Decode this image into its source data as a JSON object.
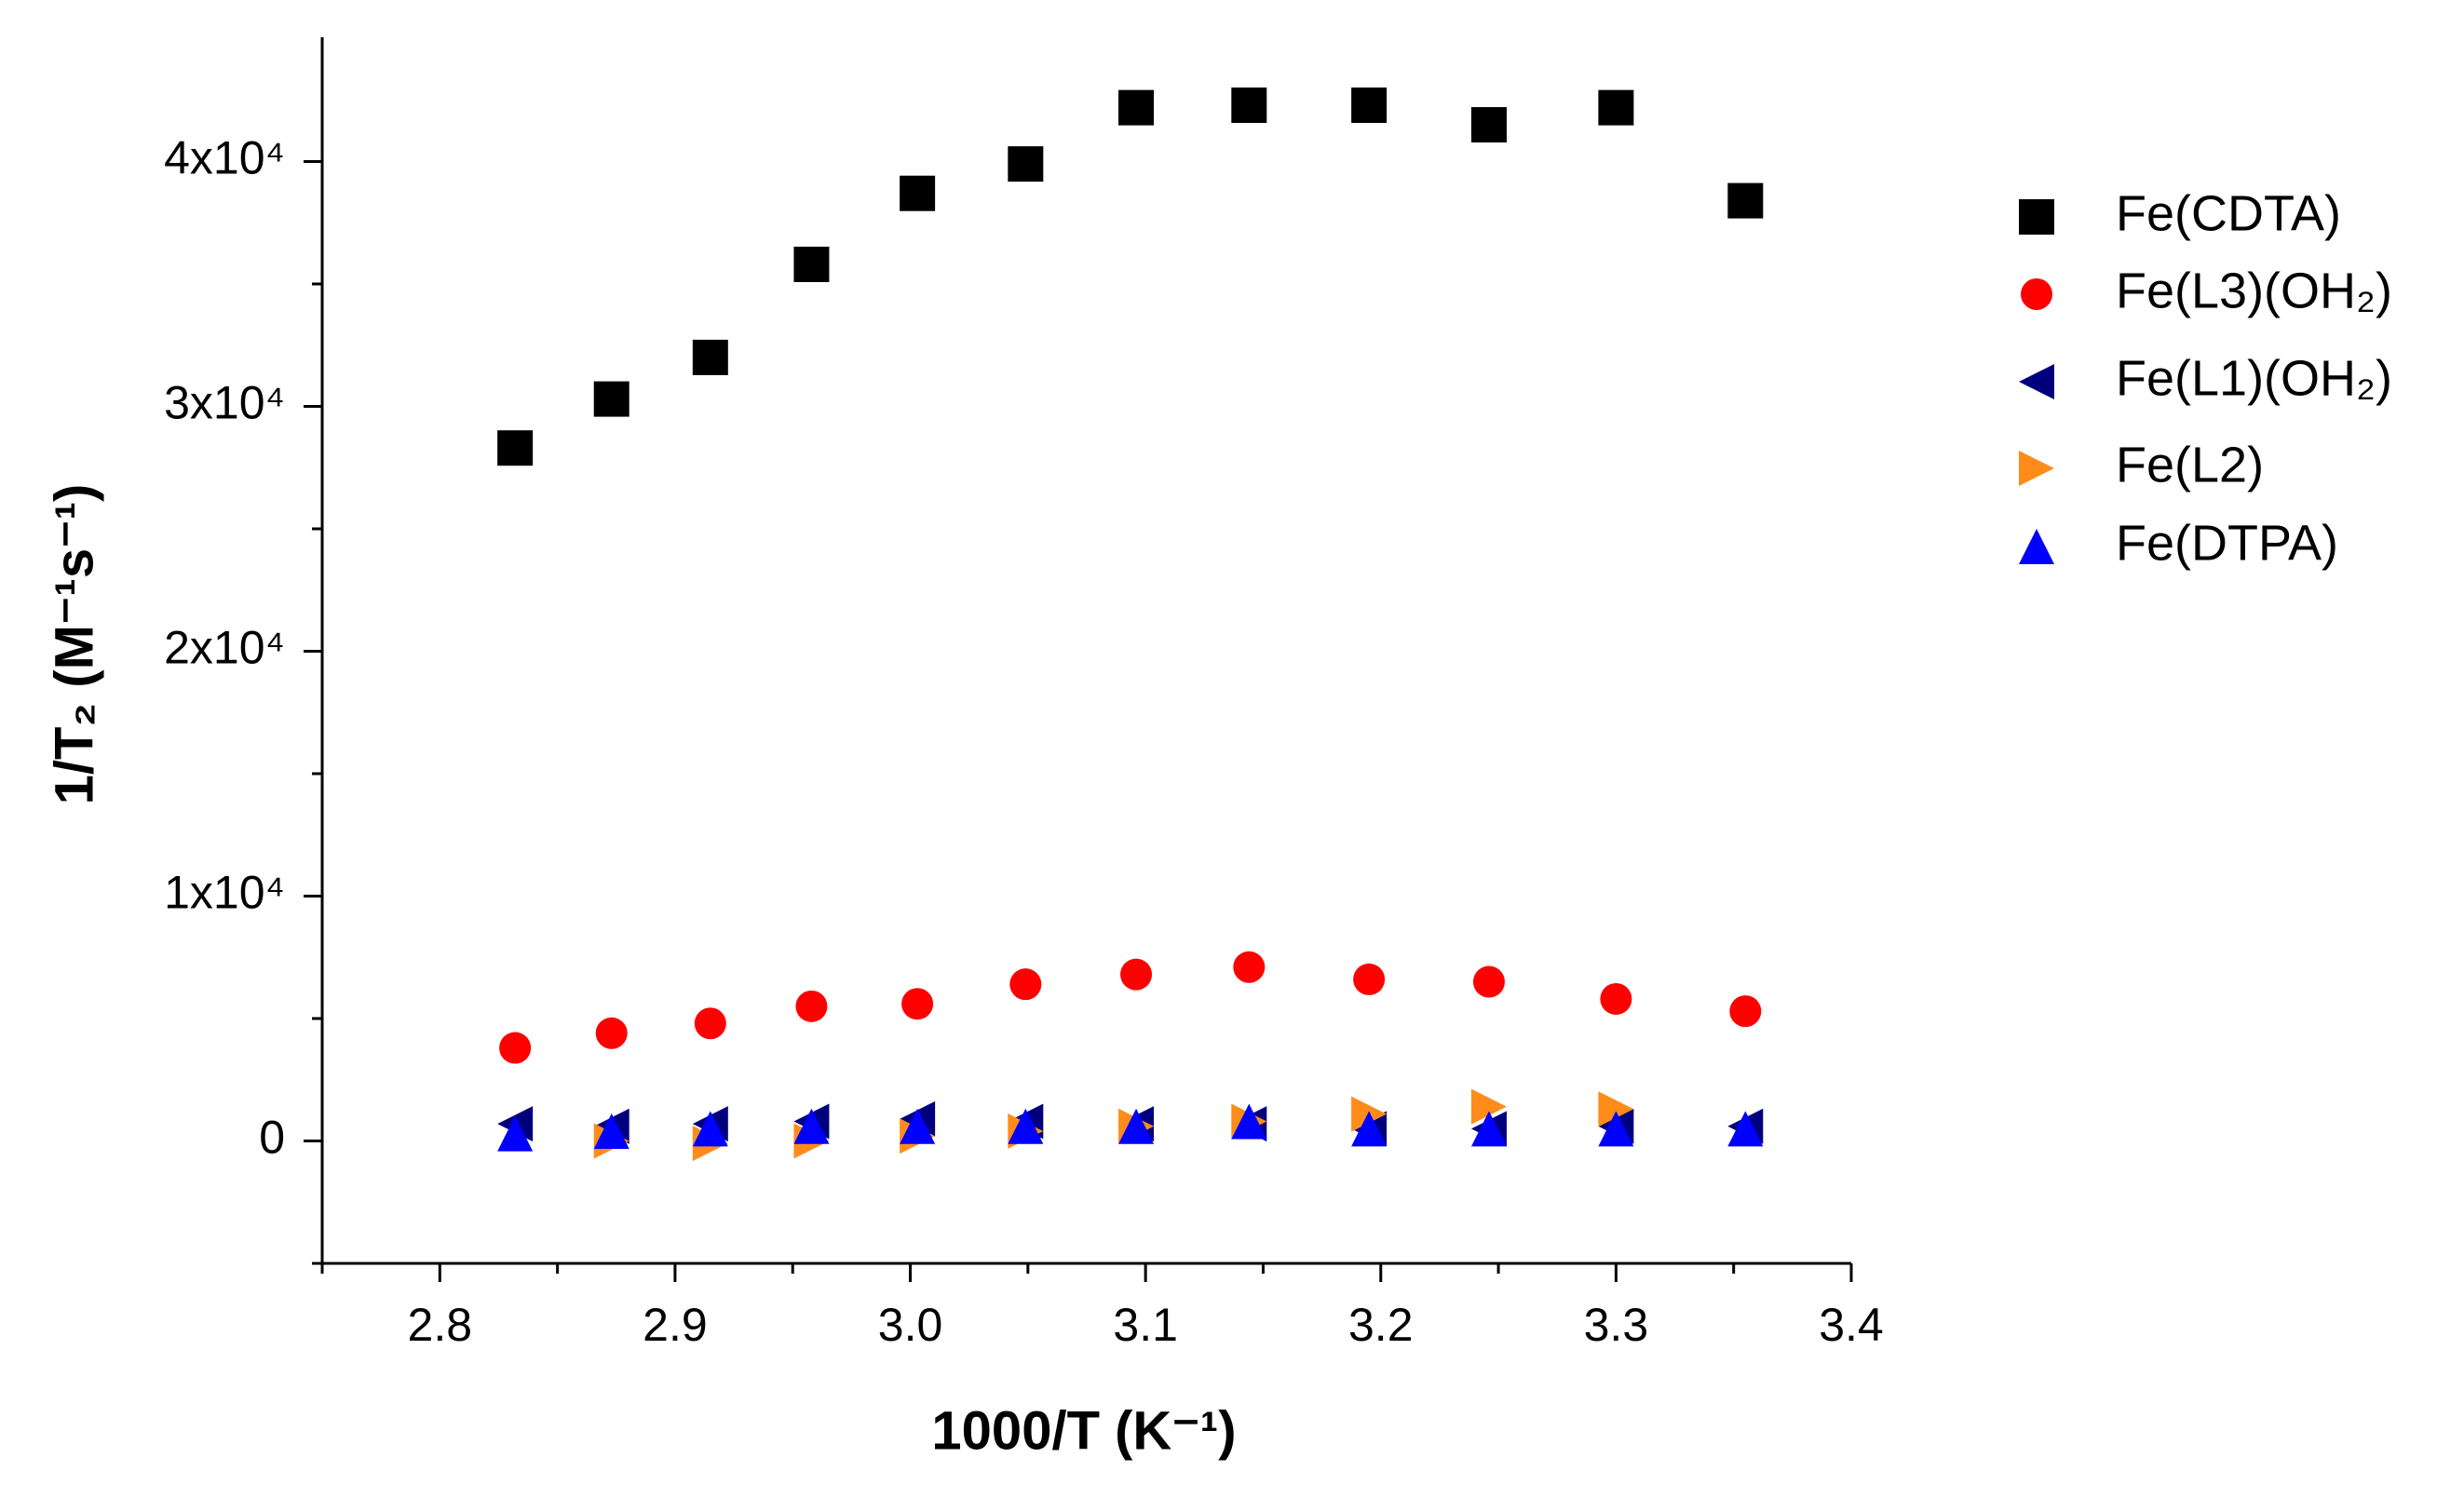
{
  "chart_data": {
    "type": "scatter",
    "x_label": "1000/T (K⁻¹)",
    "y_label": "1/T₂ (M⁻¹s⁻¹)",
    "xlim": [
      2.75,
      3.4
    ],
    "xticks": [
      2.8,
      2.9,
      {
        "value": 3,
        "label": "3.0"
      },
      3.1,
      3.2,
      3.3,
      3.4
    ],
    "x_minor_ticks": [
      2.75,
      2.85,
      2.95,
      3.05,
      3.15,
      3.25,
      3.35
    ],
    "ylim": [
      -5000,
      45000
    ],
    "yticks": [
      {
        "value": 0,
        "label": "0"
      },
      {
        "value": 10000,
        "label": "1x10⁴"
      },
      {
        "value": 20000,
        "label": "2x10⁴"
      },
      {
        "value": 30000,
        "label": "3x10⁴"
      },
      {
        "value": 40000,
        "label": "4x10⁴"
      }
    ],
    "y_minor_ticks": [
      -5000,
      5000,
      15000,
      25000,
      35000
    ],
    "legend": "right",
    "series": [
      {
        "name": "Fe(CDTA)",
        "color": "#000000",
        "marker": "square",
        "x": [
          2.832,
          2.873,
          2.915,
          2.958,
          3.003,
          3.049,
          3.096,
          3.144,
          3.195,
          3.246,
          3.3,
          3.355
        ],
        "values": [
          28300,
          30300,
          32000,
          35800,
          38700,
          39900,
          42200,
          42300,
          42300,
          41500,
          42200,
          38400
        ]
      },
      {
        "name": "Fe(L3)(OH₂)",
        "color": "#ff0000",
        "marker": "circle",
        "x": [
          2.832,
          2.873,
          2.915,
          2.958,
          3.003,
          3.049,
          3.096,
          3.144,
          3.195,
          3.246,
          3.3,
          3.355
        ],
        "values": [
          3800,
          4400,
          4800,
          5500,
          5600,
          6400,
          6800,
          7100,
          6600,
          6500,
          5800,
          5300
        ]
      },
      {
        "name": "Fe(L1)(OH₂)",
        "color": "#00007f",
        "marker": "triangle-left",
        "x": [
          2.832,
          2.873,
          2.915,
          2.958,
          3.003,
          3.049,
          3.096,
          3.144,
          3.195,
          3.246,
          3.3,
          3.355
        ],
        "values": [
          700,
          600,
          700,
          800,
          900,
          800,
          700,
          700,
          500,
          500,
          600,
          600
        ]
      },
      {
        "name": "Fe(L2)",
        "color": "#ff8c1a",
        "marker": "triangle-right",
        "x": [
          2.873,
          2.915,
          2.958,
          3.003,
          3.049,
          3.096,
          3.144,
          3.195,
          3.246,
          3.3
        ],
        "values": [
          0,
          -100,
          0,
          200,
          400,
          600,
          800,
          1100,
          1400,
          1300
        ]
      },
      {
        "name": "Fe(DTPA)",
        "color": "#0000ff",
        "marker": "triangle-up",
        "x": [
          2.832,
          2.873,
          2.915,
          2.958,
          3.003,
          3.049,
          3.096,
          3.144,
          3.195,
          3.246,
          3.3,
          3.355
        ],
        "values": [
          300,
          400,
          500,
          600,
          600,
          600,
          600,
          800,
          500,
          500,
          500,
          500
        ]
      }
    ]
  }
}
